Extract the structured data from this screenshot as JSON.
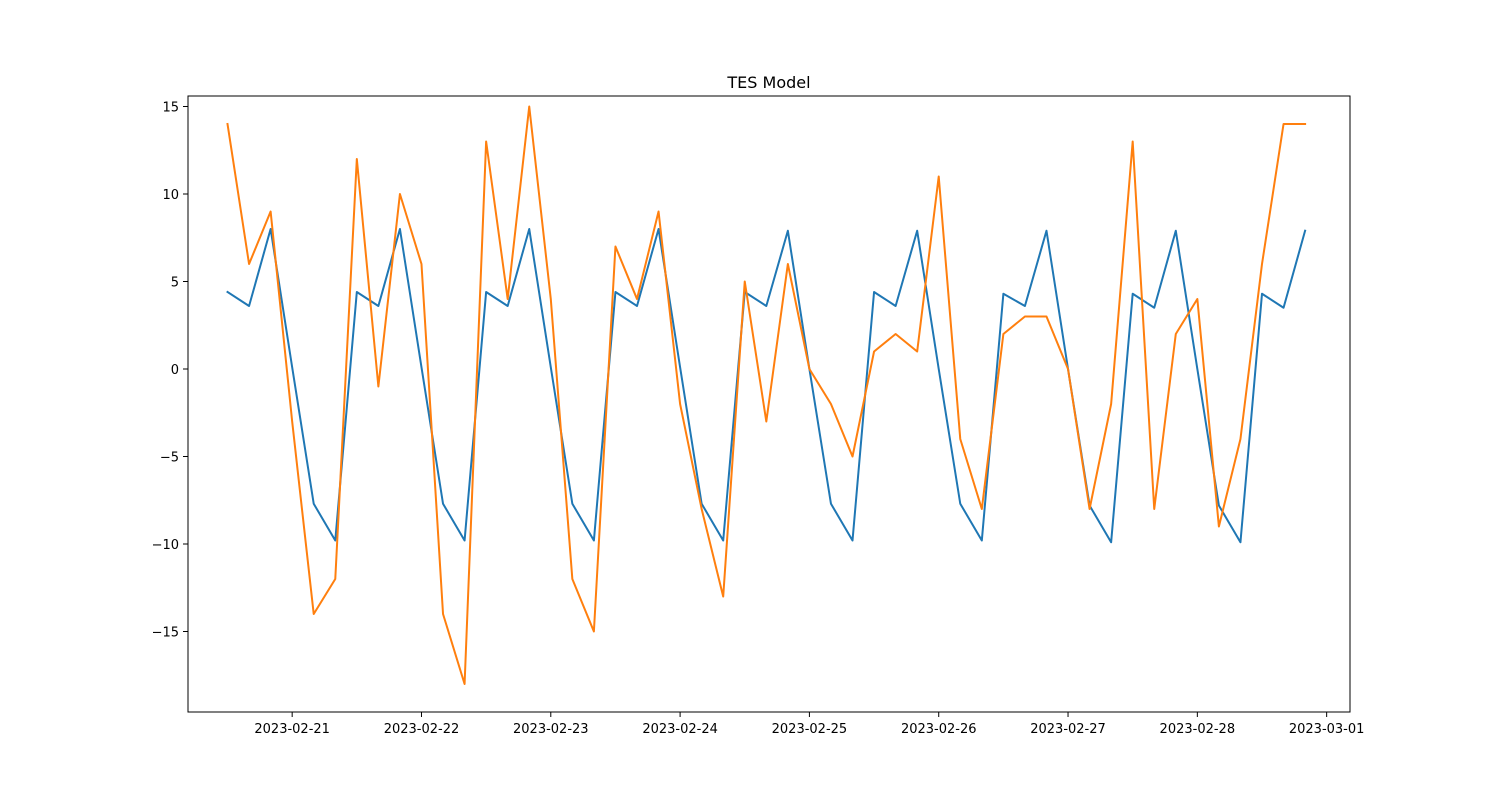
{
  "chart_data": {
    "type": "line",
    "title": "TES Model",
    "xlabel": "",
    "ylabel": "",
    "x_type": "datetime",
    "x": [
      "2023-02-20 12:00",
      "2023-02-20 16:00",
      "2023-02-20 20:00",
      "2023-02-21 00:00",
      "2023-02-21 04:00",
      "2023-02-21 08:00",
      "2023-02-21 12:00",
      "2023-02-21 16:00",
      "2023-02-21 20:00",
      "2023-02-22 00:00",
      "2023-02-22 04:00",
      "2023-02-22 08:00",
      "2023-02-22 12:00",
      "2023-02-22 16:00",
      "2023-02-22 20:00",
      "2023-02-23 00:00",
      "2023-02-23 04:00",
      "2023-02-23 08:00",
      "2023-02-23 12:00",
      "2023-02-23 16:00",
      "2023-02-23 20:00",
      "2023-02-24 00:00",
      "2023-02-24 04:00",
      "2023-02-24 08:00",
      "2023-02-24 12:00",
      "2023-02-24 16:00",
      "2023-02-24 20:00",
      "2023-02-25 00:00",
      "2023-02-25 04:00",
      "2023-02-25 08:00",
      "2023-02-25 12:00",
      "2023-02-25 16:00",
      "2023-02-25 20:00",
      "2023-02-26 00:00",
      "2023-02-26 04:00",
      "2023-02-26 08:00",
      "2023-02-26 12:00",
      "2023-02-26 16:00",
      "2023-02-26 20:00",
      "2023-02-27 00:00",
      "2023-02-27 04:00",
      "2023-02-27 08:00",
      "2023-02-27 12:00",
      "2023-02-27 16:00",
      "2023-02-27 20:00",
      "2023-02-28 00:00",
      "2023-02-28 04:00",
      "2023-02-28 08:00",
      "2023-02-28 12:00",
      "2023-02-28 16:00",
      "2023-02-28 20:00"
    ],
    "series": [
      {
        "color": "#1f77b4",
        "values": [
          4.4,
          3.6,
          8.0,
          0.1,
          -7.7,
          -9.8,
          4.4,
          3.6,
          8.0,
          0.1,
          -7.7,
          -9.8,
          4.4,
          3.6,
          8.0,
          0.1,
          -7.7,
          -9.8,
          4.4,
          3.6,
          8.0,
          0.1,
          -7.7,
          -9.8,
          4.4,
          3.6,
          7.9,
          0.0,
          -7.7,
          -9.8,
          4.4,
          3.6,
          7.9,
          0.0,
          -7.7,
          -9.8,
          4.3,
          3.6,
          7.9,
          0.0,
          -7.8,
          -9.9,
          4.3,
          3.5,
          7.9,
          0.0,
          -7.8,
          -9.9,
          4.3,
          3.5,
          7.9
        ]
      },
      {
        "color": "#ff7f0e",
        "values": [
          14,
          6,
          9,
          -3,
          -14,
          -12,
          12,
          -1,
          10,
          6,
          -14,
          -18,
          13,
          4,
          15,
          4,
          -12,
          -15,
          7,
          4,
          9,
          -2,
          -8,
          -13,
          5,
          -3,
          6,
          0,
          -2,
          -5,
          1,
          2,
          1,
          11,
          -4,
          -8,
          2,
          3,
          3,
          0,
          -8,
          -2,
          13,
          -8,
          2,
          4,
          -9,
          -4,
          6,
          14,
          14
        ]
      }
    ],
    "xlim": [
      "2023-02-20 04:40",
      "2023-03-01 04:20"
    ],
    "ylim": [
      -19.6,
      15.6
    ],
    "x_ticks": [
      "2023-02-21",
      "2023-02-22",
      "2023-02-23",
      "2023-02-24",
      "2023-02-25",
      "2023-02-26",
      "2023-02-27",
      "2023-02-28",
      "2023-03-01"
    ],
    "y_ticks": [
      15,
      10,
      5,
      0,
      -5,
      -10,
      -15
    ],
    "y_tick_labels": [
      "15",
      "10",
      "5",
      "0",
      "−5",
      "−10",
      "−15"
    ],
    "grid": false,
    "legend": "none"
  }
}
